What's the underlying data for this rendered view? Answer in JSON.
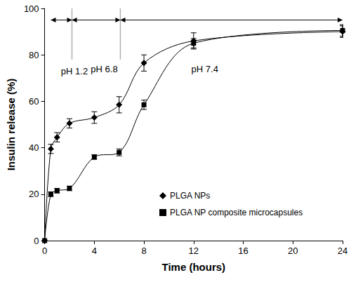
{
  "chart_data": {
    "type": "line",
    "x_label": "Time (hours)",
    "y_label": "Insulin release (%)",
    "xlim": [
      0,
      24
    ],
    "xticks": [
      0,
      4,
      8,
      12,
      16,
      20,
      24
    ],
    "ylim": [
      0,
      100
    ],
    "yticks": [
      0,
      20,
      40,
      60,
      80,
      100
    ],
    "grid": false,
    "legend": "right",
    "series": [
      {
        "name": "PLGA NPs",
        "color": "#000000",
        "marker": "diamond",
        "x": [
          0,
          0.5,
          1,
          2,
          4,
          6,
          8,
          12,
          24
        ],
        "values": [
          0,
          39.5,
          44.5,
          50.5,
          53,
          58.5,
          76.5,
          86,
          90
        ],
        "errors": [
          0,
          2,
          2,
          2,
          2.5,
          3.5,
          3.5,
          3.5,
          2.5
        ]
      },
      {
        "name": "PLGA NP composite microcapsules",
        "color": "#000000",
        "marker": "square",
        "x": [
          0,
          0.5,
          1,
          2,
          4,
          6,
          8,
          12,
          24
        ],
        "values": [
          0,
          20,
          21.5,
          22.5,
          36,
          38,
          58.5,
          85,
          90.5
        ],
        "errors": [
          0,
          1,
          1,
          1,
          1,
          1.5,
          2,
          2,
          2.5
        ]
      }
    ],
    "phase_boundaries": [
      2.2,
      6.1
    ],
    "annotations": [
      {
        "text": "pH 1.2",
        "x": 2.4,
        "y": 73,
        "arrow": [
          0.5,
          2.2
        ],
        "arrow_y": 95
      },
      {
        "text": "pH 6.8",
        "x": 4.8,
        "y": 74,
        "arrow": [
          2.2,
          6.1
        ],
        "arrow_y": 95
      },
      {
        "text": "pH 7.4",
        "x": 12.9,
        "y": 74,
        "arrow": [
          6.1,
          24
        ],
        "arrow_y": 95
      }
    ]
  }
}
